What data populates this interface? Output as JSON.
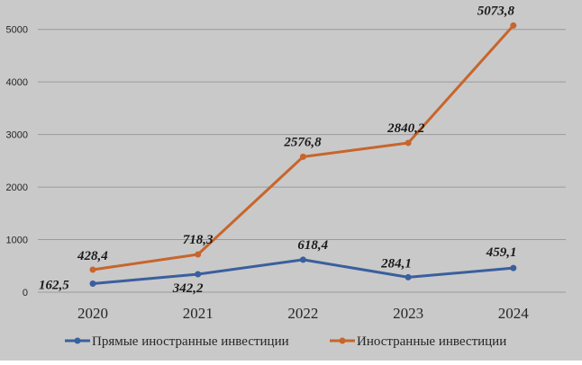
{
  "chart_data": {
    "type": "line",
    "categories": [
      "2020",
      "2021",
      "2022",
      "2023",
      "2024"
    ],
    "ylim": [
      0,
      5300
    ],
    "yticks": [
      0,
      1000,
      2000,
      3000,
      4000,
      5000
    ],
    "grid": true,
    "legend_position": "bottom",
    "series": [
      {
        "name": "Прямые иностранные инвестиции",
        "color": "#3a5f9e",
        "values": [
          162.5,
          342.2,
          618.4,
          284.1,
          459.1
        ],
        "labels": [
          "162,5",
          "342,2",
          "618,4",
          "284,1",
          "459,1"
        ]
      },
      {
        "name": "Иностранные инвестиции",
        "color": "#c8652c",
        "values": [
          428.4,
          718.3,
          2576.8,
          2840.2,
          5073.8
        ],
        "labels": [
          "428,4",
          "718,3",
          "2576,8",
          "2840,2",
          "5073,8"
        ]
      }
    ]
  },
  "colors": {
    "plot_background": "#c9c9c9",
    "gridline": "#9a9a9a"
  }
}
